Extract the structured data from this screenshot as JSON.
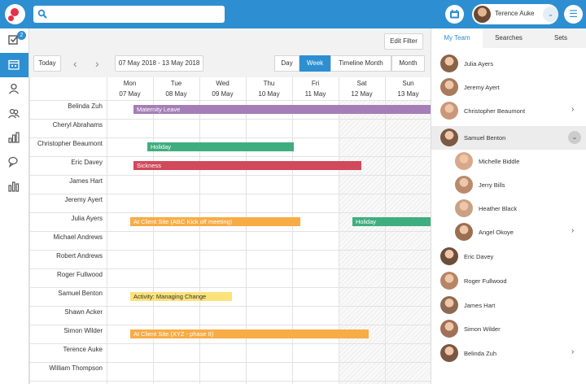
{
  "topbar": {
    "user_name": "Terence Auke",
    "colors": {
      "bar": "#2d8fd1",
      "logo": "#e5314a"
    }
  },
  "sidenav": {
    "tasks_badge": "2"
  },
  "toolbar": {
    "edit_filter": "Edit Filter",
    "today": "Today",
    "date_range": "07 May 2018 - 13 May 2018",
    "views": [
      {
        "label": "Day",
        "active": false
      },
      {
        "label": "Week",
        "active": true
      },
      {
        "label": "Timeline Month",
        "active": false
      },
      {
        "label": "Month",
        "active": false
      }
    ]
  },
  "days": [
    {
      "name": "Mon",
      "date": "07 May"
    },
    {
      "name": "Tue",
      "date": "08 May"
    },
    {
      "name": "Wed",
      "date": "09 May"
    },
    {
      "name": "Thu",
      "date": "10 May"
    },
    {
      "name": "Fri",
      "date": "11 May"
    },
    {
      "name": "Sat",
      "date": "12 May"
    },
    {
      "name": "Sun",
      "date": "13 May"
    }
  ],
  "rows": [
    "Belinda Zuh",
    "Cheryl Abrahams",
    "Christopher Beaumont",
    "Eric Davey",
    "James Hart",
    "Jeremy Ayert",
    "Julia Ayers",
    "Michael Andrews",
    "Robert Andrews",
    "Roger Fullwood",
    "Samuel Benton",
    "Shawn Acker",
    "Simon Wilder",
    "Terence Auke",
    "William Thompson"
  ],
  "events": [
    {
      "row": 0,
      "label": "Maternity Leave",
      "color": "#a57eb8"
    },
    {
      "row": 2,
      "label": "Holiday",
      "color": "#3fae7f"
    },
    {
      "row": 3,
      "label": "Sickness",
      "color": "#d1495b"
    },
    {
      "row": 6,
      "label": "At Client Site (ABC Kick off meeting)",
      "color": "#f7ac45"
    },
    {
      "row": 6,
      "label": "Holiday",
      "color": "#3fae7f"
    },
    {
      "row": 10,
      "label": "Activity: Managing Change",
      "color": "#fbe27a",
      "text_color": "#333333"
    },
    {
      "row": 12,
      "label": "At Client Site (XYZ - phase II)",
      "color": "#f7ac45"
    }
  ],
  "panel": {
    "tabs": [
      {
        "label": "My Team",
        "active": true
      },
      {
        "label": "Searches",
        "active": false
      },
      {
        "label": "Sets",
        "active": false
      }
    ],
    "team": [
      {
        "name": "Julia Ayers",
        "indent": false,
        "chevron": "",
        "selected": false
      },
      {
        "name": "Jeremy Ayert",
        "indent": false,
        "chevron": "",
        "selected": false
      },
      {
        "name": "Christopher Beaumont",
        "indent": false,
        "chevron": "right",
        "selected": false
      },
      {
        "name": "Samuel Benton",
        "indent": false,
        "chevron": "down",
        "selected": true
      },
      {
        "name": "Michelle Biddle",
        "indent": true,
        "chevron": "",
        "selected": false
      },
      {
        "name": "Jerry Bills",
        "indent": true,
        "chevron": "",
        "selected": false
      },
      {
        "name": "Heather Black",
        "indent": true,
        "chevron": "",
        "selected": false
      },
      {
        "name": "Angel Okoye",
        "indent": true,
        "chevron": "right",
        "selected": false
      },
      {
        "name": "Eric Davey",
        "indent": false,
        "chevron": "",
        "selected": false
      },
      {
        "name": "Roger Fullwood",
        "indent": false,
        "chevron": "",
        "selected": false
      },
      {
        "name": "James Hart",
        "indent": false,
        "chevron": "",
        "selected": false
      },
      {
        "name": "Simon Wilder",
        "indent": false,
        "chevron": "",
        "selected": false
      },
      {
        "name": "Belinda Zuh",
        "indent": false,
        "chevron": "right",
        "selected": false
      }
    ]
  }
}
